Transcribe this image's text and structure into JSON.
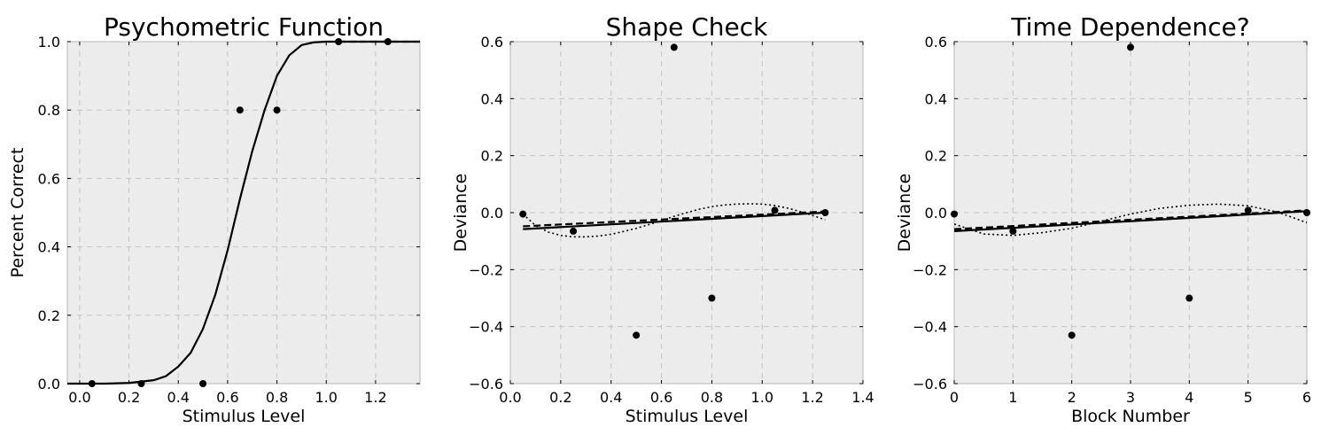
{
  "chart_data": [
    {
      "type": "scatter",
      "title": "Psychometric Function",
      "xlabel": "Stimulus Level",
      "ylabel": "Percent Correct",
      "xlim": [
        -0.05,
        1.38
      ],
      "ylim": [
        0.0,
        1.0
      ],
      "xticks": [
        0.0,
        0.2,
        0.4,
        0.6,
        0.8,
        1.0,
        1.2
      ],
      "xtick_labels": [
        "0.0",
        "0.2",
        "0.4",
        "0.6",
        "0.8",
        "1.0",
        "1.2"
      ],
      "yticks": [
        0.0,
        0.2,
        0.4,
        0.6,
        0.8,
        1.0
      ],
      "ytick_labels": [
        "0.0",
        "0.2",
        "0.4",
        "0.6",
        "0.8",
        "1.0"
      ],
      "grid": true,
      "points": {
        "x": [
          0.05,
          0.25,
          0.5,
          0.65,
          0.8,
          1.05,
          1.25
        ],
        "y": [
          0.0,
          0.0,
          0.0,
          0.8,
          0.8,
          1.0,
          1.0
        ]
      },
      "lines": [
        {
          "style": "solid",
          "x": [
            -0.05,
            0.0,
            0.1,
            0.2,
            0.3,
            0.35,
            0.4,
            0.45,
            0.5,
            0.55,
            0.6,
            0.65,
            0.7,
            0.75,
            0.8,
            0.85,
            0.9,
            0.95,
            1.0,
            1.1,
            1.2,
            1.38
          ],
          "y": [
            0.0,
            0.0,
            0.0,
            0.002,
            0.01,
            0.022,
            0.05,
            0.09,
            0.16,
            0.26,
            0.39,
            0.54,
            0.68,
            0.8,
            0.9,
            0.96,
            0.99,
            0.998,
            1.0,
            1.0,
            1.0,
            1.0
          ]
        },
        {
          "style": "dashed",
          "x": [
            1.05,
            1.38
          ],
          "y": [
            1.0,
            1.0
          ]
        }
      ]
    },
    {
      "type": "scatter",
      "title": "Shape Check",
      "xlabel": "Stimulus Level",
      "ylabel": "Deviance",
      "xlim": [
        0.0,
        1.4
      ],
      "ylim": [
        -0.6,
        0.6
      ],
      "xticks": [
        0.0,
        0.2,
        0.4,
        0.6,
        0.8,
        1.0,
        1.2,
        1.4
      ],
      "xtick_labels": [
        "0.0",
        "0.2",
        "0.4",
        "0.6",
        "0.8",
        "1.0",
        "1.2",
        "1.4"
      ],
      "yticks": [
        -0.6,
        -0.4,
        -0.2,
        0.0,
        0.2,
        0.4,
        0.6
      ],
      "ytick_labels": [
        "−0.6",
        "−0.4",
        "−0.2",
        "0.0",
        "0.2",
        "0.4",
        "0.6"
      ],
      "grid": true,
      "points": {
        "x": [
          0.05,
          0.25,
          0.5,
          0.65,
          0.8,
          1.05,
          1.25
        ],
        "y": [
          -0.005,
          -0.065,
          -0.43,
          0.58,
          -0.3,
          0.008,
          0.0
        ]
      },
      "lines": [
        {
          "style": "solid",
          "x": [
            0.05,
            1.25
          ],
          "y": [
            -0.058,
            0.0
          ]
        },
        {
          "style": "dashed",
          "x": [
            0.05,
            1.25
          ],
          "y": [
            -0.048,
            0.004
          ]
        },
        {
          "style": "dotted",
          "x": [
            0.05,
            0.1,
            0.15,
            0.2,
            0.25,
            0.3,
            0.35,
            0.4,
            0.45,
            0.5,
            0.55,
            0.6,
            0.65,
            0.7,
            0.75,
            0.8,
            0.85,
            0.9,
            0.95,
            1.0,
            1.05,
            1.1,
            1.15,
            1.2,
            1.25
          ],
          "y": [
            -0.005,
            -0.045,
            -0.068,
            -0.08,
            -0.085,
            -0.085,
            -0.082,
            -0.076,
            -0.066,
            -0.055,
            -0.042,
            -0.028,
            -0.013,
            0.0,
            0.012,
            0.021,
            0.027,
            0.03,
            0.031,
            0.03,
            0.025,
            0.016,
            0.004,
            -0.01,
            -0.025
          ]
        }
      ]
    },
    {
      "type": "scatter",
      "title": "Time Dependence?",
      "xlabel": "Block Number",
      "ylabel": "Deviance",
      "xlim": [
        0,
        6
      ],
      "ylim": [
        -0.6,
        0.6
      ],
      "xticks": [
        0,
        1,
        2,
        3,
        4,
        5,
        6
      ],
      "xtick_labels": [
        "0",
        "1",
        "2",
        "3",
        "4",
        "5",
        "6"
      ],
      "yticks": [
        -0.6,
        -0.4,
        -0.2,
        0.0,
        0.2,
        0.4,
        0.6
      ],
      "ytick_labels": [
        "−0.6",
        "−0.4",
        "−0.2",
        "0.0",
        "0.2",
        "0.4",
        "0.6"
      ],
      "grid": true,
      "points": {
        "x": [
          0,
          1,
          2,
          3,
          4,
          5,
          6
        ],
        "y": [
          -0.005,
          -0.065,
          -0.43,
          0.58,
          -0.3,
          0.008,
          0.0
        ]
      },
      "lines": [
        {
          "style": "solid",
          "x": [
            0,
            6
          ],
          "y": [
            -0.065,
            0.005
          ]
        },
        {
          "style": "dashed",
          "x": [
            0,
            6
          ],
          "y": [
            -0.058,
            0.008
          ]
        },
        {
          "style": "dotted",
          "x": [
            0,
            0.5,
            1,
            1.5,
            2,
            2.5,
            3,
            3.5,
            4,
            4.5,
            5,
            5.5,
            6
          ],
          "y": [
            -0.04,
            -0.075,
            -0.08,
            -0.07,
            -0.055,
            -0.03,
            -0.005,
            0.015,
            0.026,
            0.03,
            0.024,
            0.002,
            -0.035
          ]
        }
      ]
    }
  ]
}
